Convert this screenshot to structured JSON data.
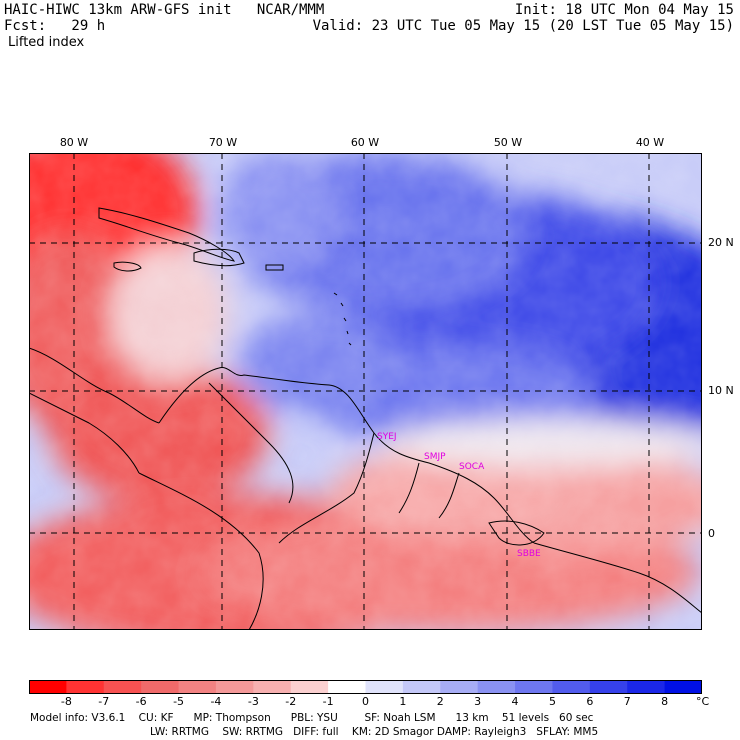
{
  "header": {
    "line1_left": "HAIC-HIWC 13km ARW-GFS init   NCAR/MMM",
    "line2_left": "Fcst:   29 h",
    "line1_right": "Init: 18 UTC Mon 04 May 15",
    "line2_right": "Valid: 23 UTC Tue 05 May 15 (20 LST Tue 05 May 15)",
    "field": "Lifted index"
  },
  "map": {
    "lon_labels": [
      "80 W",
      "70 W",
      "60 W",
      "50 W",
      "40 W"
    ],
    "lat_labels": [
      "20 N",
      "10 N",
      "0"
    ],
    "city_labels": [
      "SYEJ",
      "SMJP",
      "SOCA",
      "SBBE"
    ],
    "colors": {
      "strong_negative": "#ff2020",
      "negative": "#f08080",
      "neutral": "#ffffff",
      "positive": "#a0a8f8",
      "strong_positive": "#2030e0",
      "coast": "#000000",
      "city": "#e000e0"
    }
  },
  "colorbar": {
    "ticks": [
      "-8",
      "-7",
      "-6",
      "-5",
      "-4",
      "-3",
      "-2",
      "-1",
      "0",
      "1",
      "2",
      "3",
      "4",
      "5",
      "6",
      "7",
      "8"
    ],
    "unit": "°C",
    "colors": [
      "#ff0000",
      "#ff3333",
      "#f75252",
      "#f06a6a",
      "#f28282",
      "#f49999",
      "#f7b0b0",
      "#fbd0d0",
      "#ffffff",
      "#e0e3fb",
      "#c4c8f8",
      "#a7adf5",
      "#8a92f2",
      "#6e77f0",
      "#525ced",
      "#3641ea",
      "#1b27e8",
      "#0010e5"
    ]
  },
  "footer": {
    "line1": "Model info: V3.6.1    CU: KF      MP: Thompson      PBL: YSU        SF: Noah LSM      13 km    51 levels   60 sec",
    "line2": "LW: RRTMG    SW: RRTMG   DIFF: full    KM: 2D Smagor DAMP: Rayleigh3   SFLAY: MM5"
  }
}
